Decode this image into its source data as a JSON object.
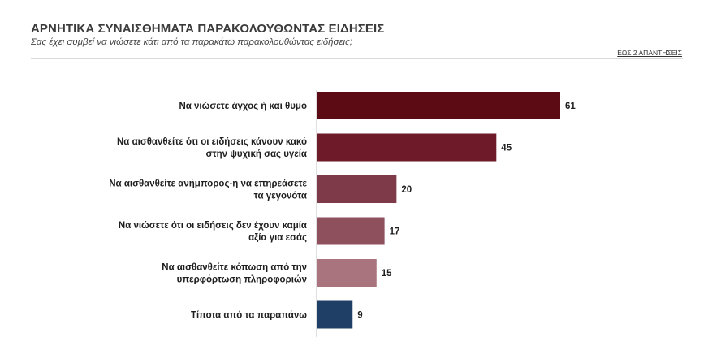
{
  "header": {
    "title": "ΑΡΝΗΤΙΚΑ ΣΥΝΑΙΣΘΗΜΑΤΑ ΠΑΡΑΚΟΛΟΥΘΩΝΤΑΣ ΕΙΔΗΣΕΙΣ",
    "subtitle": "Σας έχει συμβεί να νιώσετε κάτι από τα παρακάτω παρακολουθώντας ειδήσεις;",
    "note": "ΕΩΣ 2 ΑΠΑΝΤΗΣΕΙΣ"
  },
  "chart_data": {
    "type": "bar",
    "orientation": "horizontal",
    "title": "ΑΡΝΗΤΙΚΑ ΣΥΝΑΙΣΘΗΜΑΤΑ ΠΑΡΑΚΟΛΟΥΘΩΝΤΑΣ ΕΙΔΗΣΕΙΣ",
    "categories": [
      [
        "Να νιώσετε άγχος ή και θυμό"
      ],
      [
        "Να αισθανθείτε ότι οι ειδήσεις κάνουν κακό",
        "στην ψυχική σας υγεία"
      ],
      [
        "Να αισθανθείτε ανήμπορος-η να επηρεάσετε",
        "τα γεγονότα"
      ],
      [
        "Να νιώσετε ότι οι ειδήσεις δεν έχουν καμία",
        "αξία για εσάς"
      ],
      [
        "Να αισθανθείτε κόπωση από την",
        "υπερφόρτωση πληροφοριών"
      ],
      [
        "Τίποτα από τα παραπάνω"
      ]
    ],
    "values": [
      61,
      45,
      20,
      17,
      15,
      9
    ],
    "colors": [
      "#5c0a14",
      "#6e1a28",
      "#7e3a48",
      "#8e505d",
      "#a9747e",
      "#1f3f66"
    ],
    "grid": false,
    "legend": "none"
  }
}
